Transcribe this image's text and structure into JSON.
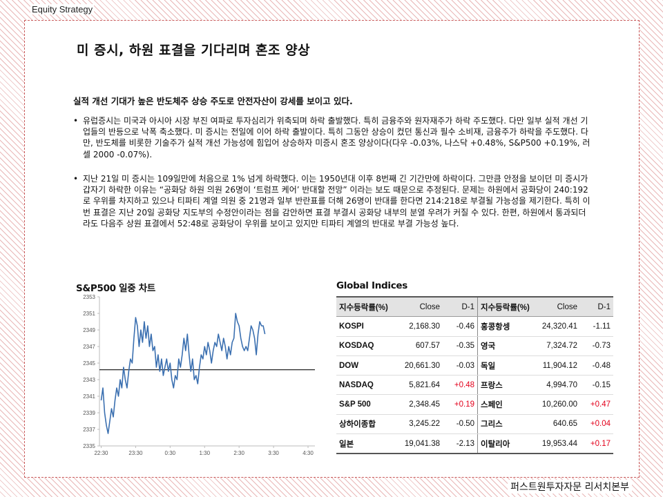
{
  "header": {
    "section_label": "Equity  Strategy"
  },
  "footer": {
    "org": "퍼스트원투자자문 리서치본부"
  },
  "main": {
    "title": "미 증시, 하원 표결을 기다리며 혼조 양상",
    "summary": "실적 개선 기대가 높은 반도체주 상승 주도로 안전자산이 강세를 보이고 있다.",
    "bullets": [
      "유럽증시는 미국과 아시아 시장 부진 여파로 투자심리가 위축되며 하락 출발했다. 특히 금융주와 원자재주가 하락 주도했다. 다만 일부 실적 개선 기업들의 반등으로 낙폭 축소했다. 미 증시는 전일에 이어 하락 출발이다. 특히 그동안 상승이 컸던 통신과 필수 소비재, 금융주가 하락을 주도했다. 다만, 반도체를 비롯한 기술주가 실적 개선 가능성에 힘입어 상승하자 미증시 혼조 양상이다(다우 -0.03%, 나스닥 +0.48%, S&P500 +0.19%, 러셀 2000 -0.07%).",
      "지난 21일 미 증시는 109일만에 처음으로 1% 넘게 하락했다. 이는 1950년대 이후 8번째 긴 기간만에 하락이다. 그만큼 안정을 보이던 미 증시가 갑자기 하락한 이유는 “공화당 하원 의원 26명이 ‘트럼프 케어’ 반대할 전망” 이라는 보도 때문으로 추정된다. 문제는 하원에서 공화당이 240:192로 우위를 차지하고 있으나 티파티 계열 의원 중 21명과 일부 반란표를 더해 26명이 반대를 한다면 214:218로 부결될 가능성을 제기한다. 특히 이번 표결은 지난 20일 공화당 지도부의 수정안이라는 점을 감안하면 표결 부결시 공화당 내부의 분열 우려가 커질 수 있다. 한편, 하원에서 통과되더라도 다음주 상원 표결에서 52:48로 공화당이 우위를 보이고 있지만 티파티 계열의 반대로 부결 가능성 높다."
    ]
  },
  "chart_data": {
    "type": "line",
    "title": "S&P500 일중 차트",
    "x_ticks": [
      "22:30",
      "23:30",
      "0:30",
      "1:30",
      "2:30",
      "3:30",
      "4:30"
    ],
    "y_ticks": [
      2335,
      2337,
      2339,
      2341,
      2343,
      2345,
      2347,
      2349,
      2351,
      2353
    ],
    "ylim": [
      2335,
      2353
    ],
    "reference_level": 2344.2,
    "series": [
      {
        "x": [
          0,
          0.05,
          0.1,
          0.15,
          0.2,
          0.25,
          0.3,
          0.35,
          0.4,
          0.45,
          0.5,
          0.55,
          0.6,
          0.65,
          0.7,
          0.75,
          0.8,
          0.85,
          0.9,
          0.95,
          1.0,
          1.05,
          1.1,
          1.15,
          1.2,
          1.25,
          1.3,
          1.35,
          1.4,
          1.45,
          1.5,
          1.55,
          1.6,
          1.65,
          1.7,
          1.75,
          1.8,
          1.85,
          1.9,
          1.95,
          2.0,
          2.05,
          2.1,
          2.15,
          2.2,
          2.25,
          2.3,
          2.35,
          2.4,
          2.45,
          2.5,
          2.55,
          2.6,
          2.65,
          2.7,
          2.75,
          2.8,
          2.85,
          2.9,
          2.95,
          3.0,
          3.05,
          3.1,
          3.15,
          3.2,
          3.25,
          3.3,
          3.35,
          3.4,
          3.45,
          3.5,
          3.55,
          3.6,
          3.65,
          3.7,
          3.75,
          3.8,
          3.85,
          3.9,
          3.95,
          4.0,
          4.05,
          4.1,
          4.15,
          4.2,
          4.25,
          4.3,
          4.35,
          4.4,
          4.45,
          4.5,
          4.55,
          4.6,
          4.65,
          4.7,
          4.75
        ],
        "values": [
          2340.5,
          2342.0,
          2339.0,
          2337.5,
          2336.5,
          2338.0,
          2339.5,
          2338.5,
          2340.5,
          2342.0,
          2341.0,
          2343.0,
          2342.0,
          2344.5,
          2343.0,
          2342.0,
          2344.0,
          2345.5,
          2345.0,
          2348.0,
          2350.5,
          2349.5,
          2347.0,
          2349.0,
          2347.5,
          2350.0,
          2348.0,
          2349.5,
          2347.0,
          2348.5,
          2346.5,
          2347.0,
          2344.5,
          2346.0,
          2344.0,
          2345.5,
          2343.5,
          2344.5,
          2345.5,
          2344.0,
          2345.0,
          2343.0,
          2342.0,
          2343.5,
          2343.0,
          2345.5,
          2344.5,
          2346.0,
          2348.0,
          2346.5,
          2348.5,
          2346.0,
          2344.0,
          2345.5,
          2343.0,
          2343.5,
          2342.5,
          2344.5,
          2346.0,
          2345.5,
          2347.0,
          2346.0,
          2347.5,
          2346.5,
          2345.0,
          2346.5,
          2347.5,
          2347.0,
          2348.5,
          2347.5,
          2346.5,
          2348.0,
          2347.0,
          2345.5,
          2347.0,
          2346.0,
          2347.5,
          2348.0,
          2351.0,
          2350.0,
          2349.5,
          2348.0,
          2347.0,
          2346.5,
          2347.0,
          2346.5,
          2348.0,
          2349.5,
          2349.0,
          2348.0,
          2346.0,
          2348.5,
          2350.0,
          2349.5,
          2349.5,
          2348.5
        ]
      }
    ]
  },
  "indices": {
    "title": "Global Indices",
    "headers": [
      "지수등락률(%)",
      "Close",
      "D-1",
      "지수등락률(%)",
      "Close",
      "D-1"
    ],
    "left": [
      {
        "name": "KOSPI",
        "close": "2,168.30",
        "change": "-0.46",
        "dir": "neg"
      },
      {
        "name": "KOSDAQ",
        "close": "607.57",
        "change": "-0.35",
        "dir": "neg"
      },
      {
        "name": "DOW",
        "close": "20,661.30",
        "change": "-0.03",
        "dir": "neg"
      },
      {
        "name": "NASDAQ",
        "close": "5,821.64",
        "change": "+0.48",
        "dir": "pos"
      },
      {
        "name": "S&P 500",
        "close": "2,348.45",
        "change": "+0.19",
        "dir": "pos"
      },
      {
        "name": "상하이종합",
        "close": "3,245.22",
        "change": "-0.50",
        "dir": "neg"
      },
      {
        "name": "일본",
        "close": "19,041.38",
        "change": "-2.13",
        "dir": "neg"
      }
    ],
    "right": [
      {
        "name": "홍콩항셍",
        "close": "24,320.41",
        "change": "-1.11",
        "dir": "neg"
      },
      {
        "name": "영국",
        "close": "7,324.72",
        "change": "-0.73",
        "dir": "neg"
      },
      {
        "name": "독일",
        "close": "11,904.12",
        "change": "-0.48",
        "dir": "neg"
      },
      {
        "name": "프랑스",
        "close": "4,994.70",
        "change": "-0.15",
        "dir": "neg"
      },
      {
        "name": "스페인",
        "close": "10,260.00",
        "change": "+0.47",
        "dir": "pos"
      },
      {
        "name": "그리스",
        "close": "640.65",
        "change": "+0.04",
        "dir": "pos"
      },
      {
        "name": "이탈리아",
        "close": "19,953.44",
        "change": "+0.17",
        "dir": "pos"
      }
    ]
  },
  "colors": {
    "line": "#3a6fb0",
    "positive": "#e3001b",
    "border": "#c85a5a"
  }
}
